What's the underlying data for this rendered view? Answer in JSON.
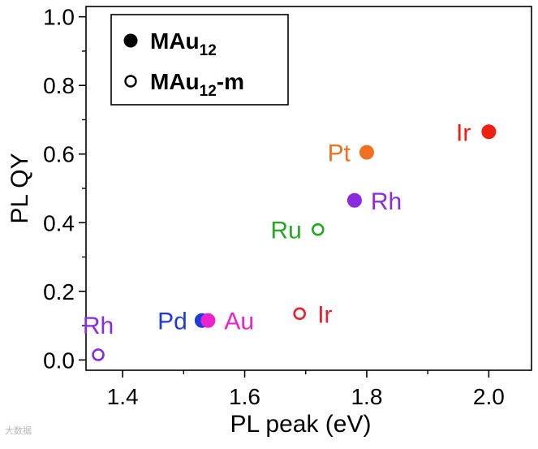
{
  "chart_data": {
    "type": "scatter",
    "title": "",
    "xlabel": "PL peak (eV)",
    "ylabel": "PL QY",
    "xlim": [
      1.34,
      2.07
    ],
    "ylim": [
      -0.03,
      1.03
    ],
    "x_ticks": [
      1.4,
      1.6,
      1.8,
      2.0
    ],
    "x_tick_labels": [
      "1.4",
      "1.6",
      "1.8",
      "2.0"
    ],
    "y_ticks": [
      0.0,
      0.2,
      0.4,
      0.6,
      0.8,
      1.0
    ],
    "y_tick_labels": [
      "0.0",
      "0.2",
      "0.4",
      "0.6",
      "0.8",
      "1.0"
    ],
    "grid": false,
    "legend_placement": "top-left",
    "legend": {
      "filled_label": "MAu",
      "filled_subscript": "12",
      "open_label": "MAu",
      "open_subscript": "12",
      "open_suffix": "-m"
    },
    "series": [
      {
        "name": "MAu12",
        "marker": "filled",
        "points": [
          {
            "label": "Pd",
            "x": 1.53,
            "y": 0.115,
            "color": "#1f3be0"
          },
          {
            "label": "Au",
            "x": 1.54,
            "y": 0.115,
            "color": "#ee22cc"
          },
          {
            "label": "Rh",
            "x": 1.78,
            "y": 0.465,
            "color": "#8a2be2"
          },
          {
            "label": "Pt",
            "x": 1.8,
            "y": 0.605,
            "color": "#f07020"
          },
          {
            "label": "Ir",
            "x": 2.0,
            "y": 0.665,
            "color": "#f02010"
          }
        ]
      },
      {
        "name": "MAu12-m",
        "marker": "open",
        "points": [
          {
            "label": "Rh",
            "x": 1.36,
            "y": 0.015,
            "color": "#8a2be2"
          },
          {
            "label": "Ir",
            "x": 1.69,
            "y": 0.135,
            "color": "#e8202a"
          },
          {
            "label": "Ru",
            "x": 1.72,
            "y": 0.38,
            "color": "#22aa22"
          }
        ]
      }
    ]
  },
  "watermark": "大数据"
}
